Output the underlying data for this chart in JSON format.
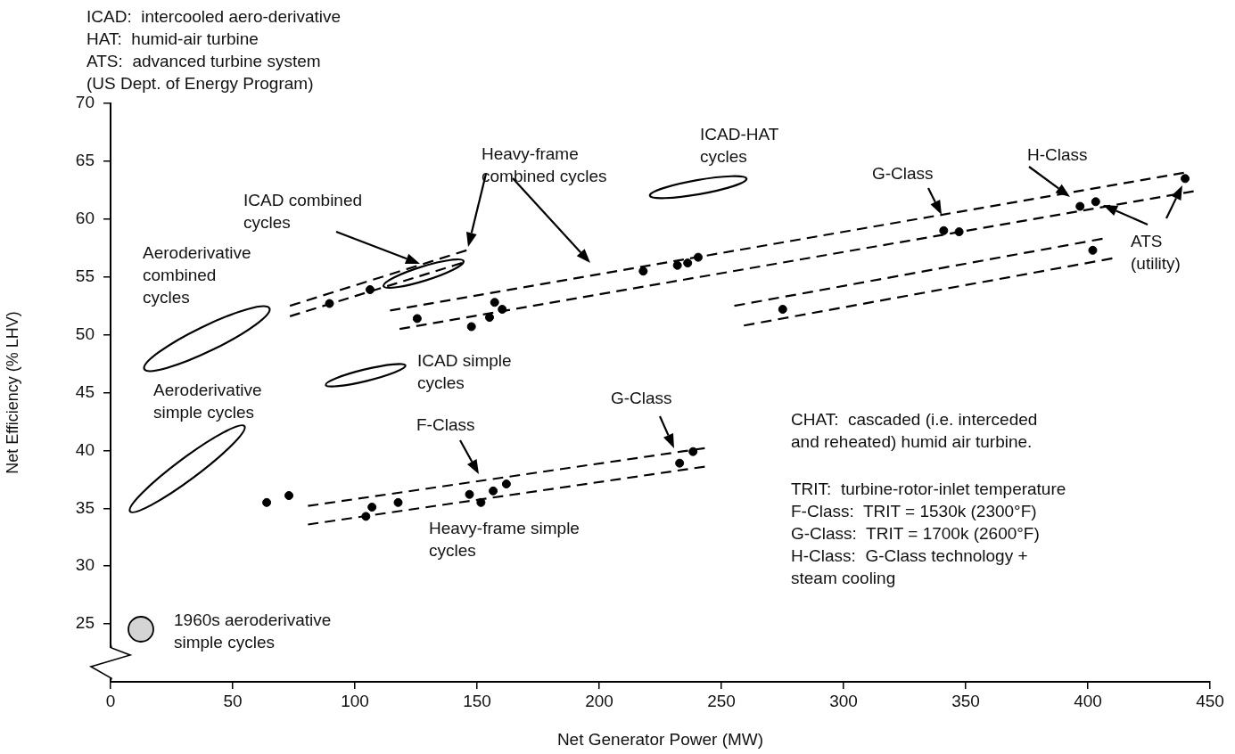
{
  "chart_data": {
    "type": "scatter",
    "xlabel": "Net Generator Power (MW)",
    "ylabel": "Net Efficiency (% LHV)",
    "xlim": [
      0,
      450
    ],
    "xticks": [
      0,
      50,
      100,
      150,
      200,
      250,
      300,
      350,
      400,
      450
    ],
    "ylim": [
      20,
      70
    ],
    "yticks": [
      25,
      30,
      35,
      40,
      45,
      50,
      55,
      60,
      65,
      70
    ],
    "grid": false,
    "legend": false,
    "marker": "circle",
    "series": [
      {
        "color": "#000000",
        "x": [
          89.6,
          106.2,
          125.5,
          147.7,
          155.1,
          157.2,
          160.3,
          218,
          232,
          236.2,
          240.5,
          341,
          347.3,
          396.8,
          403.2,
          439.8,
          402,
          275.1,
          63.9,
          73,
          107,
          104.5,
          117.7,
          146.9,
          151.6,
          156.6,
          162,
          232.9,
          238.4
        ],
        "values": [
          52.7,
          53.9,
          51.4,
          50.7,
          51.5,
          52.8,
          52.2,
          55.5,
          56.0,
          56.2,
          56.7,
          59.0,
          58.9,
          61.1,
          61.5,
          63.5,
          57.3,
          52.2,
          35.5,
          36.1,
          35.1,
          34.3,
          35.5,
          36.2,
          35.5,
          36.5,
          37.1,
          38.9,
          39.9
        ]
      },
      {
        "type": "line",
        "marker": "none",
        "line_style": "dashed",
        "color": "#000000",
        "x": [
          73.4,
          145.7
        ],
        "values": [
          52.5,
          57.3
        ]
      },
      {
        "type": "line",
        "marker": "none",
        "line_style": "dashed",
        "color": "#000000",
        "x": [
          73.4,
          143.8
        ],
        "values": [
          51.6,
          56.2
        ]
      },
      {
        "type": "line",
        "marker": "none",
        "line_style": "dashed",
        "color": "#000000",
        "x": [
          114.4,
          439.3
        ],
        "values": [
          52.1,
          64.0
        ]
      },
      {
        "type": "line",
        "marker": "none",
        "line_style": "dashed",
        "color": "#000000",
        "x": [
          118.3,
          443.3
        ],
        "values": [
          50.5,
          62.4
        ]
      },
      {
        "type": "line",
        "marker": "none",
        "line_style": "dashed",
        "color": "#000000",
        "x": [
          255.3,
          406
        ],
        "values": [
          52.5,
          58.3
        ]
      },
      {
        "type": "line",
        "marker": "none",
        "line_style": "dashed",
        "color": "#000000",
        "x": [
          259.2,
          410
        ],
        "values": [
          50.8,
          56.6
        ]
      },
      {
        "type": "line",
        "marker": "none",
        "line_style": "dashed",
        "color": "#000000",
        "x": [
          80.8,
          243.2
        ],
        "values": [
          35.2,
          40.2
        ]
      },
      {
        "type": "line",
        "marker": "none",
        "line_style": "dashed",
        "color": "#000000",
        "x": [
          80.8,
          243.2
        ],
        "values": [
          33.6,
          38.6
        ]
      }
    ],
    "annotations": [
      "ICAD:  intercooled aero-derivative\nHAT:  humid-air turbine\nATS:  advanced turbine system\n(US Dept. of Energy Program)",
      "CHAT:  cascaded (i.e. interceded\nand reheated) humid air turbine.",
      "TRIT:  turbine-rotor-inlet temperature\nF-Class:  TRIT = 1530k (2300°F)\nG-Class:  TRIT = 1700k (2600°F)\nH-Class:  G-Class technology +\nsteam cooling",
      "ICAD-HAT\ncycles",
      "G-Class",
      "H-Class",
      "ATS\n(utility)",
      "Heavy-frame\ncombined cycles",
      "ICAD combined\ncycles",
      "Aeroderivative\ncombined\ncycles",
      "ICAD simple\ncycles",
      "Aeroderivative\nsimple cycles",
      "G-Class",
      "F-Class",
      "Heavy-frame simple\ncycles",
      "1960s aeroderivative\nsimple cycles"
    ]
  }
}
